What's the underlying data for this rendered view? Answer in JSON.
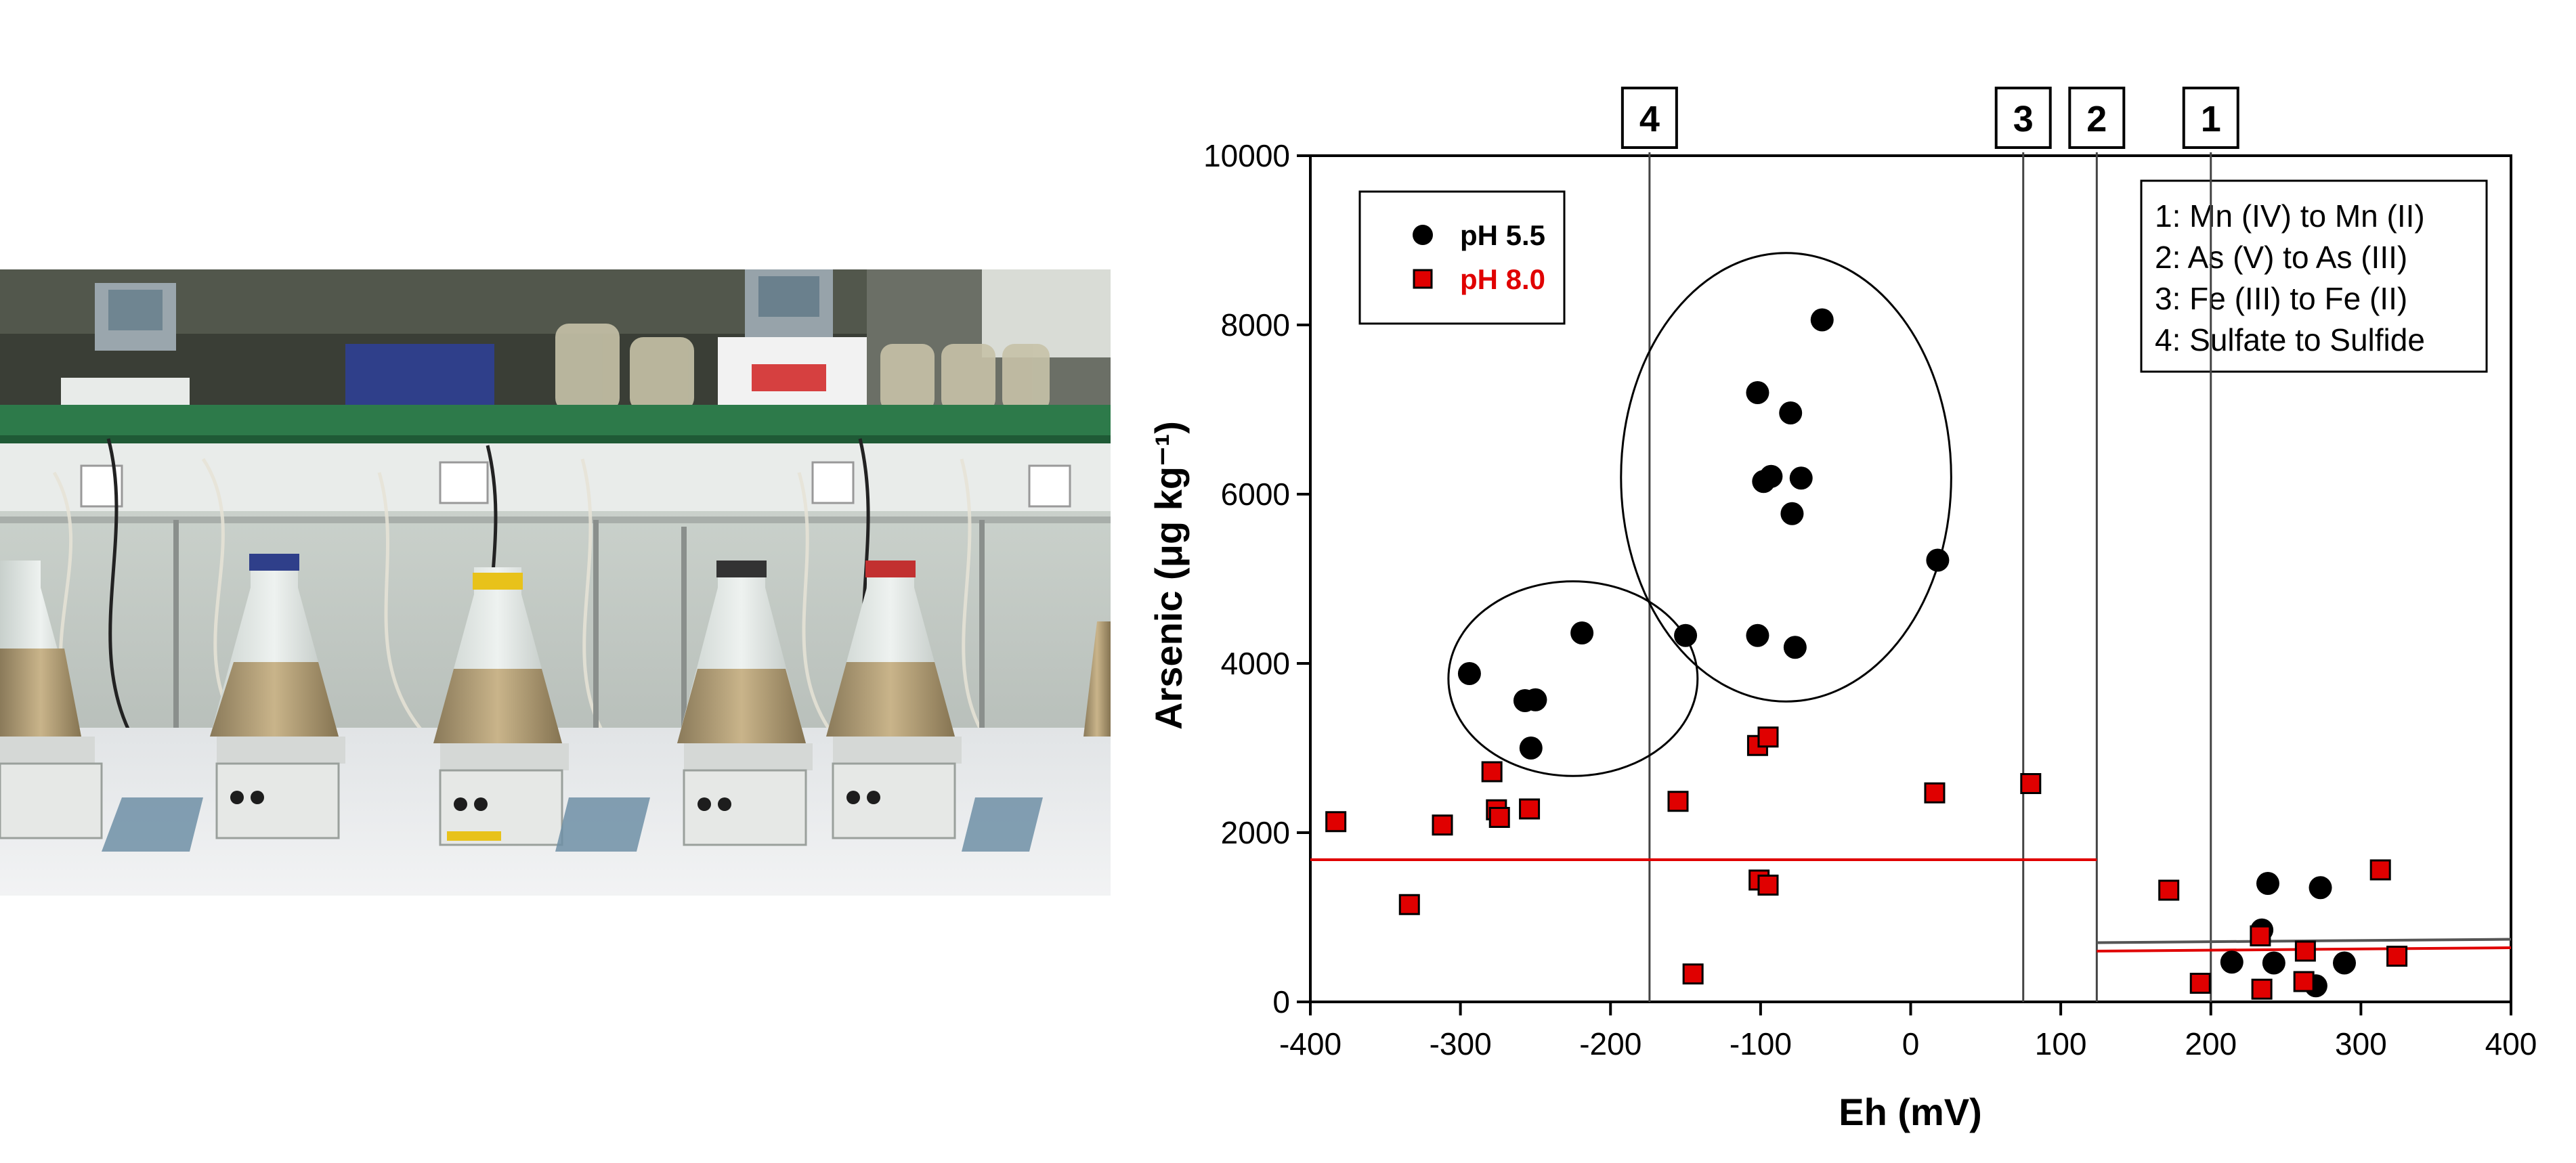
{
  "photo": {
    "alt_icon": "laboratory-bioreactor-photo"
  },
  "chart_data": {
    "type": "scatter",
    "xlabel": "Eh (mV)",
    "ylabel": "Arsenic (μg kg⁻¹)",
    "xlim": [
      -400,
      400
    ],
    "ylim": [
      0,
      10000
    ],
    "xticks": [
      -400,
      -300,
      -200,
      -100,
      0,
      100,
      200,
      300,
      400
    ],
    "yticks": [
      0,
      2000,
      4000,
      6000,
      8000,
      10000
    ],
    "grid": false,
    "legend_position": "top-left",
    "series": [
      {
        "name": "pH 5.5",
        "marker": "circle",
        "color": "#000000",
        "points": [
          [
            -294,
            3880
          ],
          [
            -257,
            3560
          ],
          [
            -250,
            3570
          ],
          [
            -253,
            3000
          ],
          [
            -219,
            4360
          ],
          [
            -150,
            4330
          ],
          [
            -102,
            4330
          ],
          [
            -77,
            4190
          ],
          [
            -98,
            6150
          ],
          [
            -93,
            6210
          ],
          [
            -79,
            5770
          ],
          [
            -73,
            6190
          ],
          [
            -80,
            6960
          ],
          [
            -102,
            7200
          ],
          [
            -59,
            8060
          ],
          [
            18,
            5220
          ],
          [
            234,
            850
          ],
          [
            238,
            1400
          ],
          [
            242,
            460
          ],
          [
            214,
            470
          ],
          [
            273,
            1350
          ],
          [
            289,
            460
          ],
          [
            270,
            190
          ]
        ]
      },
      {
        "name": "pH 8.0",
        "marker": "square",
        "color": "#e00000",
        "points": [
          [
            -383,
            2130
          ],
          [
            -334,
            1150
          ],
          [
            -312,
            2090
          ],
          [
            -279,
            2720
          ],
          [
            -276,
            2270
          ],
          [
            -274,
            2180
          ],
          [
            -254,
            2280
          ],
          [
            -155,
            2370
          ],
          [
            -145,
            330
          ],
          [
            -102,
            3030
          ],
          [
            -95,
            3130
          ],
          [
            -101,
            1440
          ],
          [
            -95,
            1380
          ],
          [
            16,
            2470
          ],
          [
            80,
            2580
          ],
          [
            172,
            1320
          ],
          [
            193,
            220
          ],
          [
            233,
            780
          ],
          [
            234,
            150
          ],
          [
            263,
            600
          ],
          [
            262,
            240
          ],
          [
            313,
            1560
          ],
          [
            324,
            540
          ]
        ]
      }
    ],
    "reference_lines_x": [
      {
        "label": "4",
        "x": -174
      },
      {
        "label": "3",
        "x": 75
      },
      {
        "label": "2",
        "x": 124
      },
      {
        "label": "1",
        "x": 200
      }
    ],
    "fit_lines": [
      {
        "x": [
          -400,
          124
        ],
        "y": [
          1680,
          1680
        ],
        "color": "#e00000"
      },
      {
        "x": [
          124,
          400
        ],
        "y": [
          600,
          640
        ],
        "color": "#e00000"
      },
      {
        "x": [
          124,
          400
        ],
        "y": [
          700,
          740
        ],
        "color": "#555555"
      }
    ],
    "cluster_ellipses": [
      {
        "cx": -225,
        "cy": 3820,
        "rx": 83,
        "ry": 1150
      },
      {
        "cx": -83,
        "cy": 6200,
        "rx": 110,
        "ry": 2650
      }
    ],
    "key_box": [
      "1: Mn (IV) to Mn (II)",
      "2: As (V) to As (III)",
      "3: Fe (III) to Fe (II)",
      "4: Sulfate to Sulfide"
    ]
  }
}
